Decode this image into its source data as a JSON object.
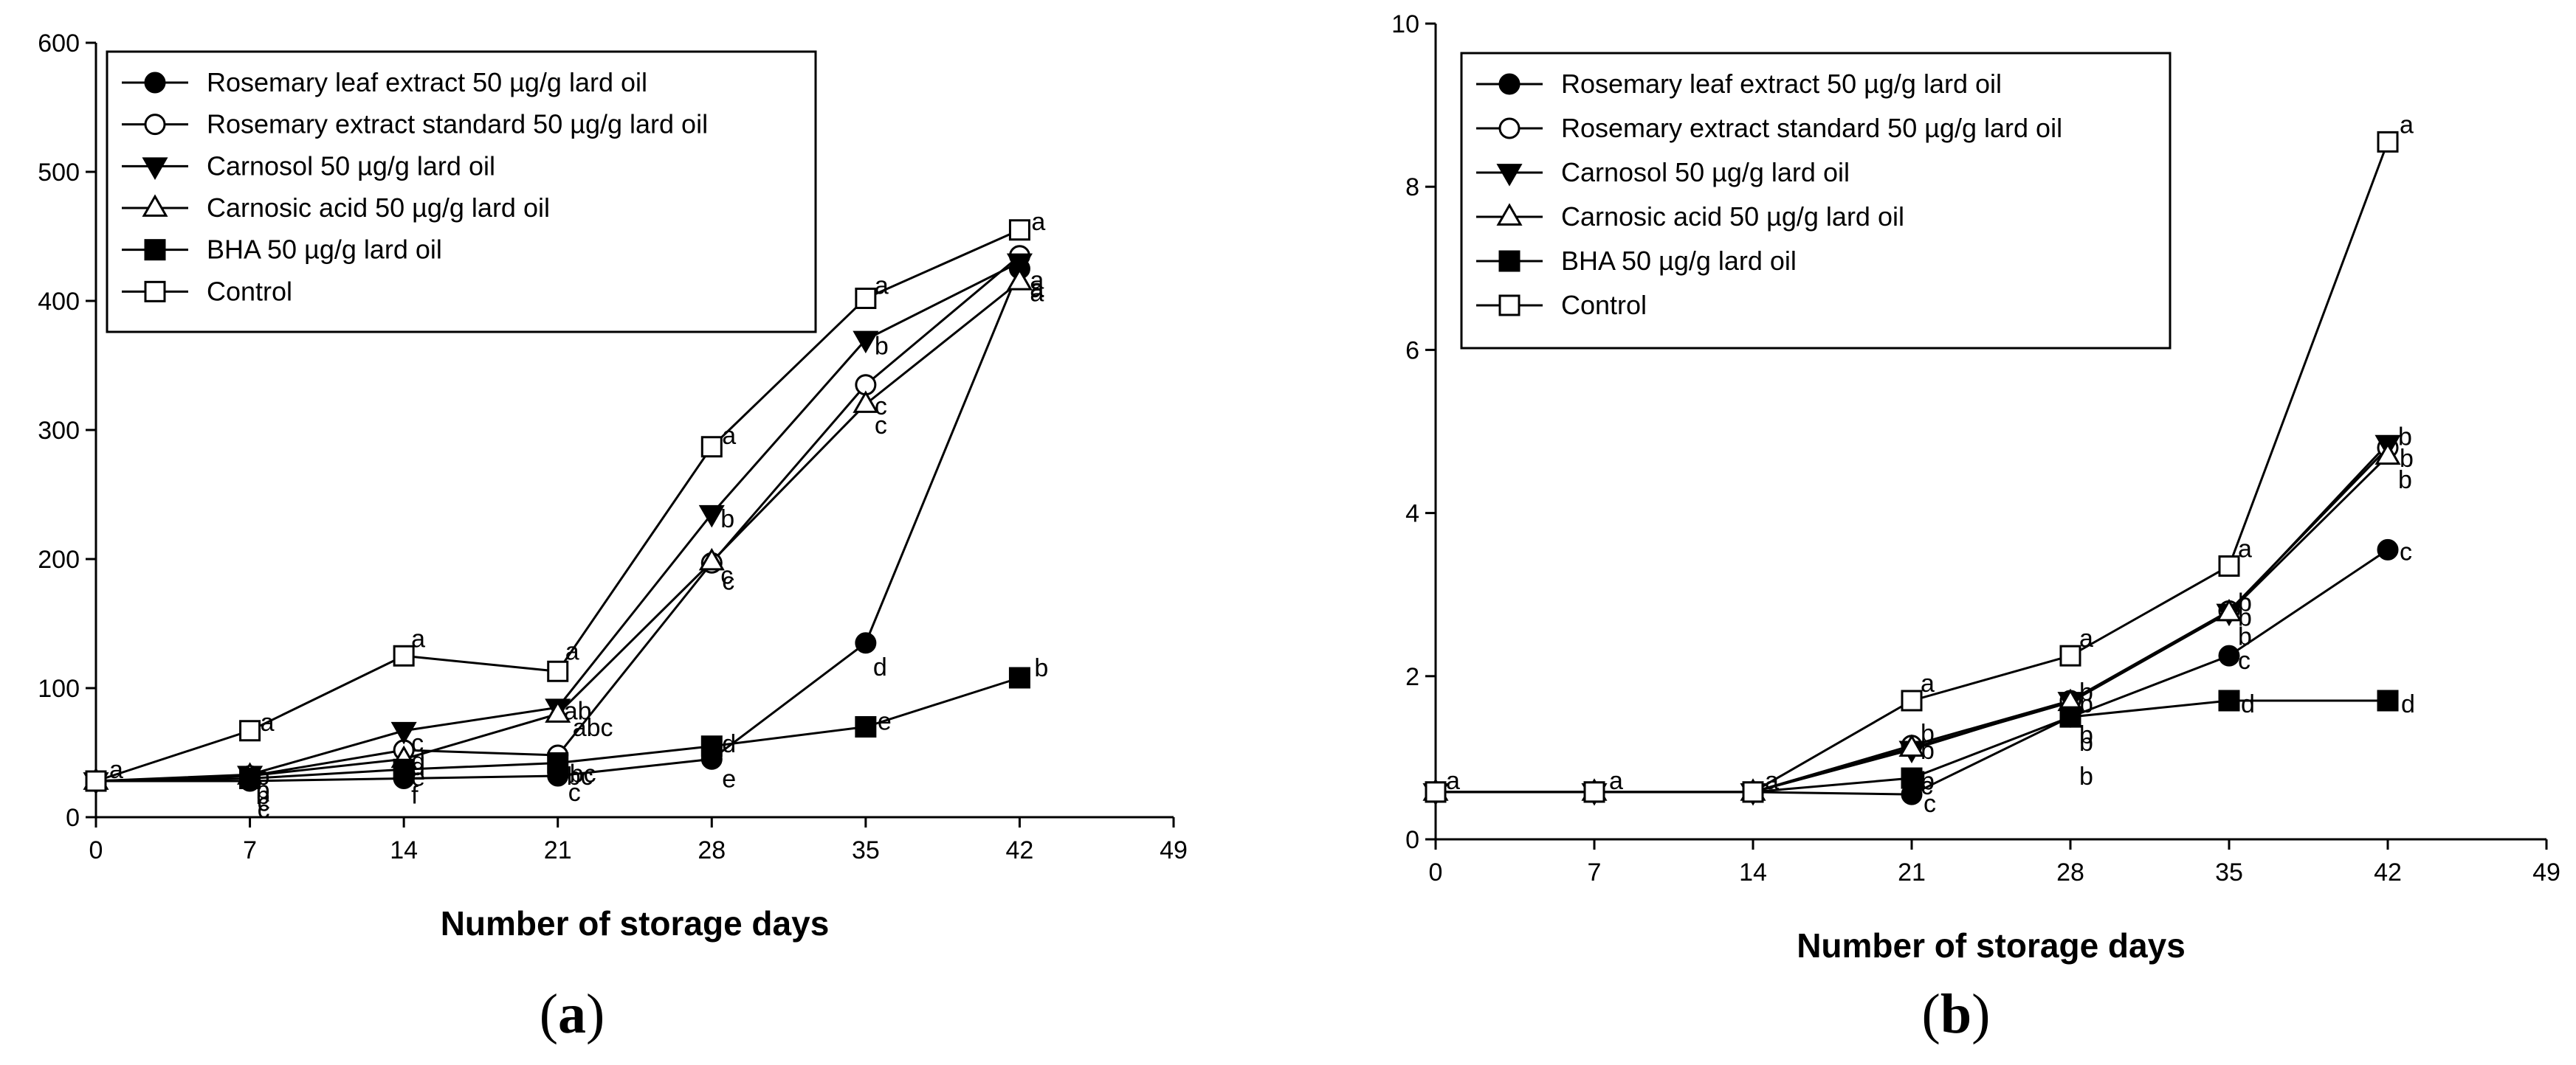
{
  "chart_data": [
    {
      "type": "line",
      "panel": "a",
      "panel_label": "a",
      "xlabel": "Number of storage days",
      "ylabel": "",
      "xlim": [
        0,
        49
      ],
      "ylim": [
        0,
        600
      ],
      "xticks": [
        0,
        7,
        14,
        21,
        28,
        35,
        42,
        49
      ],
      "yticks": [
        0,
        100,
        200,
        300,
        400,
        500,
        600
      ],
      "legend_position": "top-left",
      "x": [
        0,
        7,
        14,
        21,
        28,
        35,
        42
      ],
      "series": [
        {
          "name": "Rosemary leaf extract 50 µg/g lard oil",
          "marker": "circle-filled",
          "values": [
            28,
            28,
            30,
            32,
            45,
            135,
            425
          ],
          "labels": [
            "a",
            "c",
            "f",
            "c",
            "e",
            "d",
            "a"
          ]
        },
        {
          "name": "Rosemary extract standard 50 µg/g lard oil",
          "marker": "circle-open",
          "values": [
            28,
            32,
            52,
            48,
            197,
            335,
            435
          ],
          "labels": [
            "",
            "b",
            "d",
            "bc",
            "c",
            "c",
            "a"
          ]
        },
        {
          "name": "Carnosol 50 µg/g lard oil",
          "marker": "triangle-down-filled",
          "values": [
            28,
            33,
            67,
            85,
            235,
            370,
            430
          ],
          "labels": [
            "",
            "b",
            "c",
            "ab",
            "b",
            "b",
            "a"
          ]
        },
        {
          "name": "Carnosic acid 50 µg/g lard oil",
          "marker": "triangle-up-open",
          "values": [
            28,
            32,
            45,
            80,
            198,
            320,
            415
          ],
          "labels": [
            "",
            "b",
            "d",
            "abc",
            "c",
            "c",
            "a"
          ]
        },
        {
          "name": "BHA 50 µg/g lard oil",
          "marker": "square-filled",
          "values": [
            28,
            30,
            37,
            42,
            55,
            70,
            108
          ],
          "labels": [
            "",
            "c",
            "e",
            "bc",
            "d",
            "e",
            "b"
          ]
        },
        {
          "name": "Control",
          "marker": "square-open",
          "values": [
            28,
            67,
            125,
            113,
            287,
            402,
            455
          ],
          "labels": [
            "",
            "a",
            "a",
            "a",
            "a",
            "a",
            "a"
          ]
        }
      ]
    },
    {
      "type": "line",
      "panel": "b",
      "panel_label": "b",
      "xlabel": "Number of storage days",
      "ylabel": "",
      "xlim": [
        0,
        49
      ],
      "ylim": [
        0,
        10
      ],
      "xticks": [
        0,
        7,
        14,
        21,
        28,
        35,
        42,
        49
      ],
      "yticks": [
        0,
        2,
        4,
        6,
        8,
        10
      ],
      "legend_position": "top-left",
      "x": [
        0,
        7,
        14,
        21,
        28,
        35,
        42
      ],
      "series": [
        {
          "name": "Rosemary leaf extract 50 µg/g lard oil",
          "marker": "circle-filled",
          "values": [
            0.58,
            0.58,
            0.58,
            0.55,
            1.5,
            2.25,
            3.55
          ],
          "labels": [
            "a",
            "a",
            "a",
            "c",
            "b",
            "c",
            "c"
          ]
        },
        {
          "name": "Rosemary extract standard 50 µg/g lard oil",
          "marker": "circle-open",
          "values": [
            0.58,
            0.58,
            0.58,
            1.15,
            1.7,
            2.8,
            4.8
          ],
          "labels": [
            "",
            "",
            "",
            "b",
            "b",
            "b",
            "b"
          ]
        },
        {
          "name": "Carnosol 50 µg/g lard oil",
          "marker": "triangle-down-filled",
          "values": [
            0.58,
            0.58,
            0.58,
            1.1,
            1.7,
            2.78,
            4.85
          ],
          "labels": [
            "",
            "",
            "",
            "b",
            "b",
            "b",
            "b"
          ]
        },
        {
          "name": "Carnosic acid 50 µg/g lard oil",
          "marker": "triangle-up-open",
          "values": [
            0.58,
            0.58,
            0.58,
            1.12,
            1.68,
            2.78,
            4.7
          ],
          "labels": [
            "",
            "",
            "",
            "b",
            "b",
            "b",
            "b"
          ]
        },
        {
          "name": "BHA 50 µg/g lard oil",
          "marker": "square-filled",
          "values": [
            0.58,
            0.58,
            0.58,
            0.75,
            1.5,
            1.7,
            1.7
          ],
          "labels": [
            "",
            "",
            "",
            "c",
            "b",
            "d",
            "d"
          ]
        },
        {
          "name": "Control",
          "marker": "square-open",
          "values": [
            0.58,
            0.58,
            0.58,
            1.7,
            2.25,
            3.35,
            8.55
          ],
          "labels": [
            "",
            "",
            "",
            "a",
            "a",
            "a",
            "a"
          ]
        }
      ]
    }
  ]
}
